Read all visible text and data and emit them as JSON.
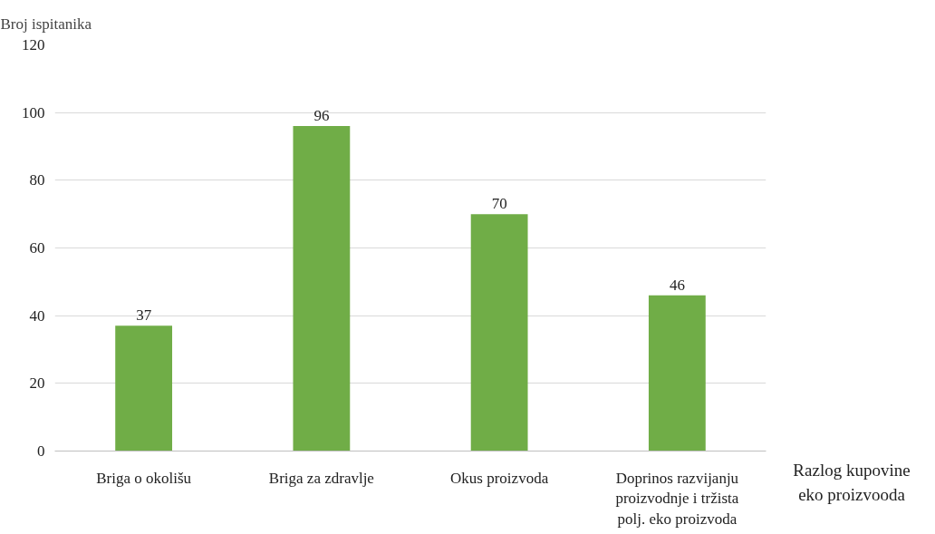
{
  "chart_data": {
    "type": "bar",
    "ylabel": "Broj ispitanika",
    "xlabel": "Razlog kupovine\neko proizvooda",
    "categories": [
      "Briga o okolišu",
      "Briga za zdravlje",
      "Okus proizvoda",
      "Doprinos razvijanju\nproizvodnje i tržista\npolj. eko proizvoda"
    ],
    "values": [
      37,
      96,
      70,
      46
    ],
    "color": "#70ad47",
    "data_labels": true,
    "ylim": [
      0,
      120
    ],
    "yticks": [
      0,
      20,
      40,
      60,
      80,
      100,
      120
    ],
    "grid": "y"
  }
}
